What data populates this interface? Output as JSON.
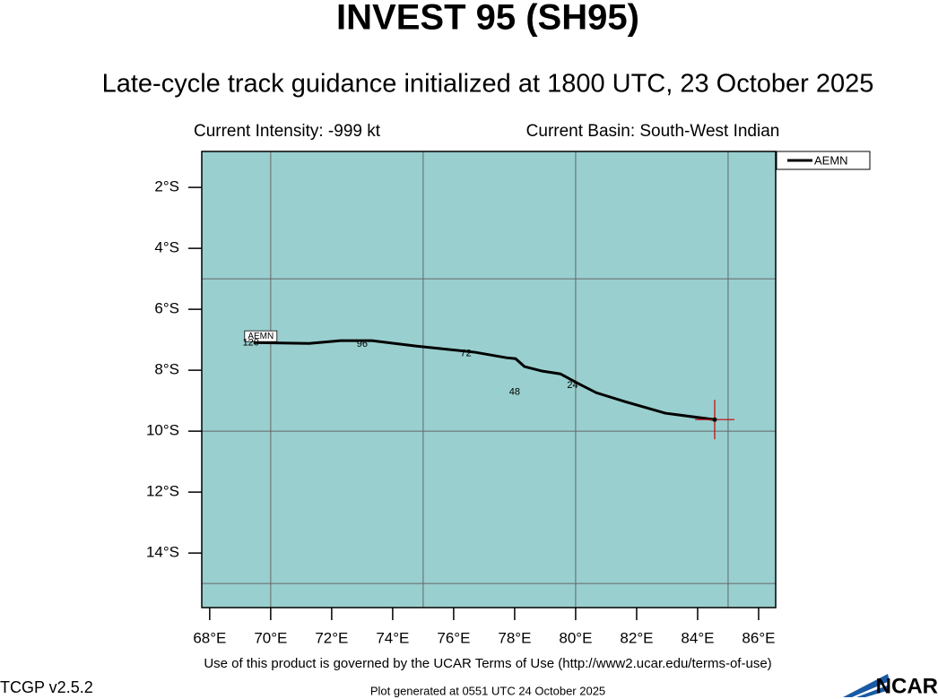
{
  "chart_data": {
    "type": "line",
    "title": "INVEST 95 (SH95)",
    "subtitle": "Late-cycle track guidance initialized at 1800 UTC, 23 October 2025",
    "intensity": "Current Intensity: -999 kt",
    "basin": "Current Basin: South-West Indian",
    "xlim": [
      67.74,
      86.56
    ],
    "ylim": [
      -15.79,
      -0.82
    ],
    "xticks": [
      {
        "value": 68,
        "label": "68°E"
      },
      {
        "value": 70,
        "label": "70°E"
      },
      {
        "value": 72,
        "label": "72°E"
      },
      {
        "value": 74,
        "label": "74°E"
      },
      {
        "value": 76,
        "label": "76°E"
      },
      {
        "value": 78,
        "label": "78°E"
      },
      {
        "value": 80,
        "label": "80°E"
      },
      {
        "value": 82,
        "label": "82°E"
      },
      {
        "value": 84,
        "label": "84°E"
      },
      {
        "value": 86,
        "label": "86°E"
      }
    ],
    "yticks": [
      {
        "value": -2,
        "label": "2°S"
      },
      {
        "value": -4,
        "label": "4°S"
      },
      {
        "value": -6,
        "label": "6°S"
      },
      {
        "value": -8,
        "label": "8°S"
      },
      {
        "value": -10,
        "label": "10°S"
      },
      {
        "value": -12,
        "label": "12°S"
      },
      {
        "value": -14,
        "label": "14°S"
      }
    ],
    "grid_x": [
      70,
      75,
      80,
      85
    ],
    "grid_y": [
      -5,
      -10,
      -15
    ],
    "series": [
      {
        "name": "AEMN",
        "color": "#000000",
        "x": [
          69.44,
          71.26,
          72.29,
          73.32,
          74.79,
          76.7,
          77.73,
          78.03,
          78.32,
          78.91,
          79.5,
          80.09,
          80.68,
          81.62,
          82.94,
          84.56
        ],
        "values": [
          -7.09,
          -7.12,
          -7.03,
          -7.03,
          -7.21,
          -7.41,
          -7.59,
          -7.62,
          -7.88,
          -8.03,
          -8.12,
          -8.44,
          -8.74,
          -9.03,
          -9.41,
          -9.62
        ]
      }
    ],
    "current_position": {
      "x": 84.56,
      "y": -9.62
    },
    "forecast_labels": [
      {
        "label": "120",
        "x": 69.35,
        "y": -7.1
      },
      {
        "label": "96",
        "x": 73.0,
        "y": -7.15
      },
      {
        "label": "72",
        "x": 76.4,
        "y": -7.45
      },
      {
        "label": "48",
        "x": 78.0,
        "y": -8.72
      },
      {
        "label": "24",
        "x": 79.9,
        "y": -8.5
      }
    ],
    "terms": "Use of this product is governed by the UCAR Terms of Use (http://www2.ucar.edu/terms-of-use)",
    "version": "TCGP v2.5.2",
    "generated": "Plot generated at 0551 UTC  24 October 2025",
    "logo": "NCAR"
  }
}
